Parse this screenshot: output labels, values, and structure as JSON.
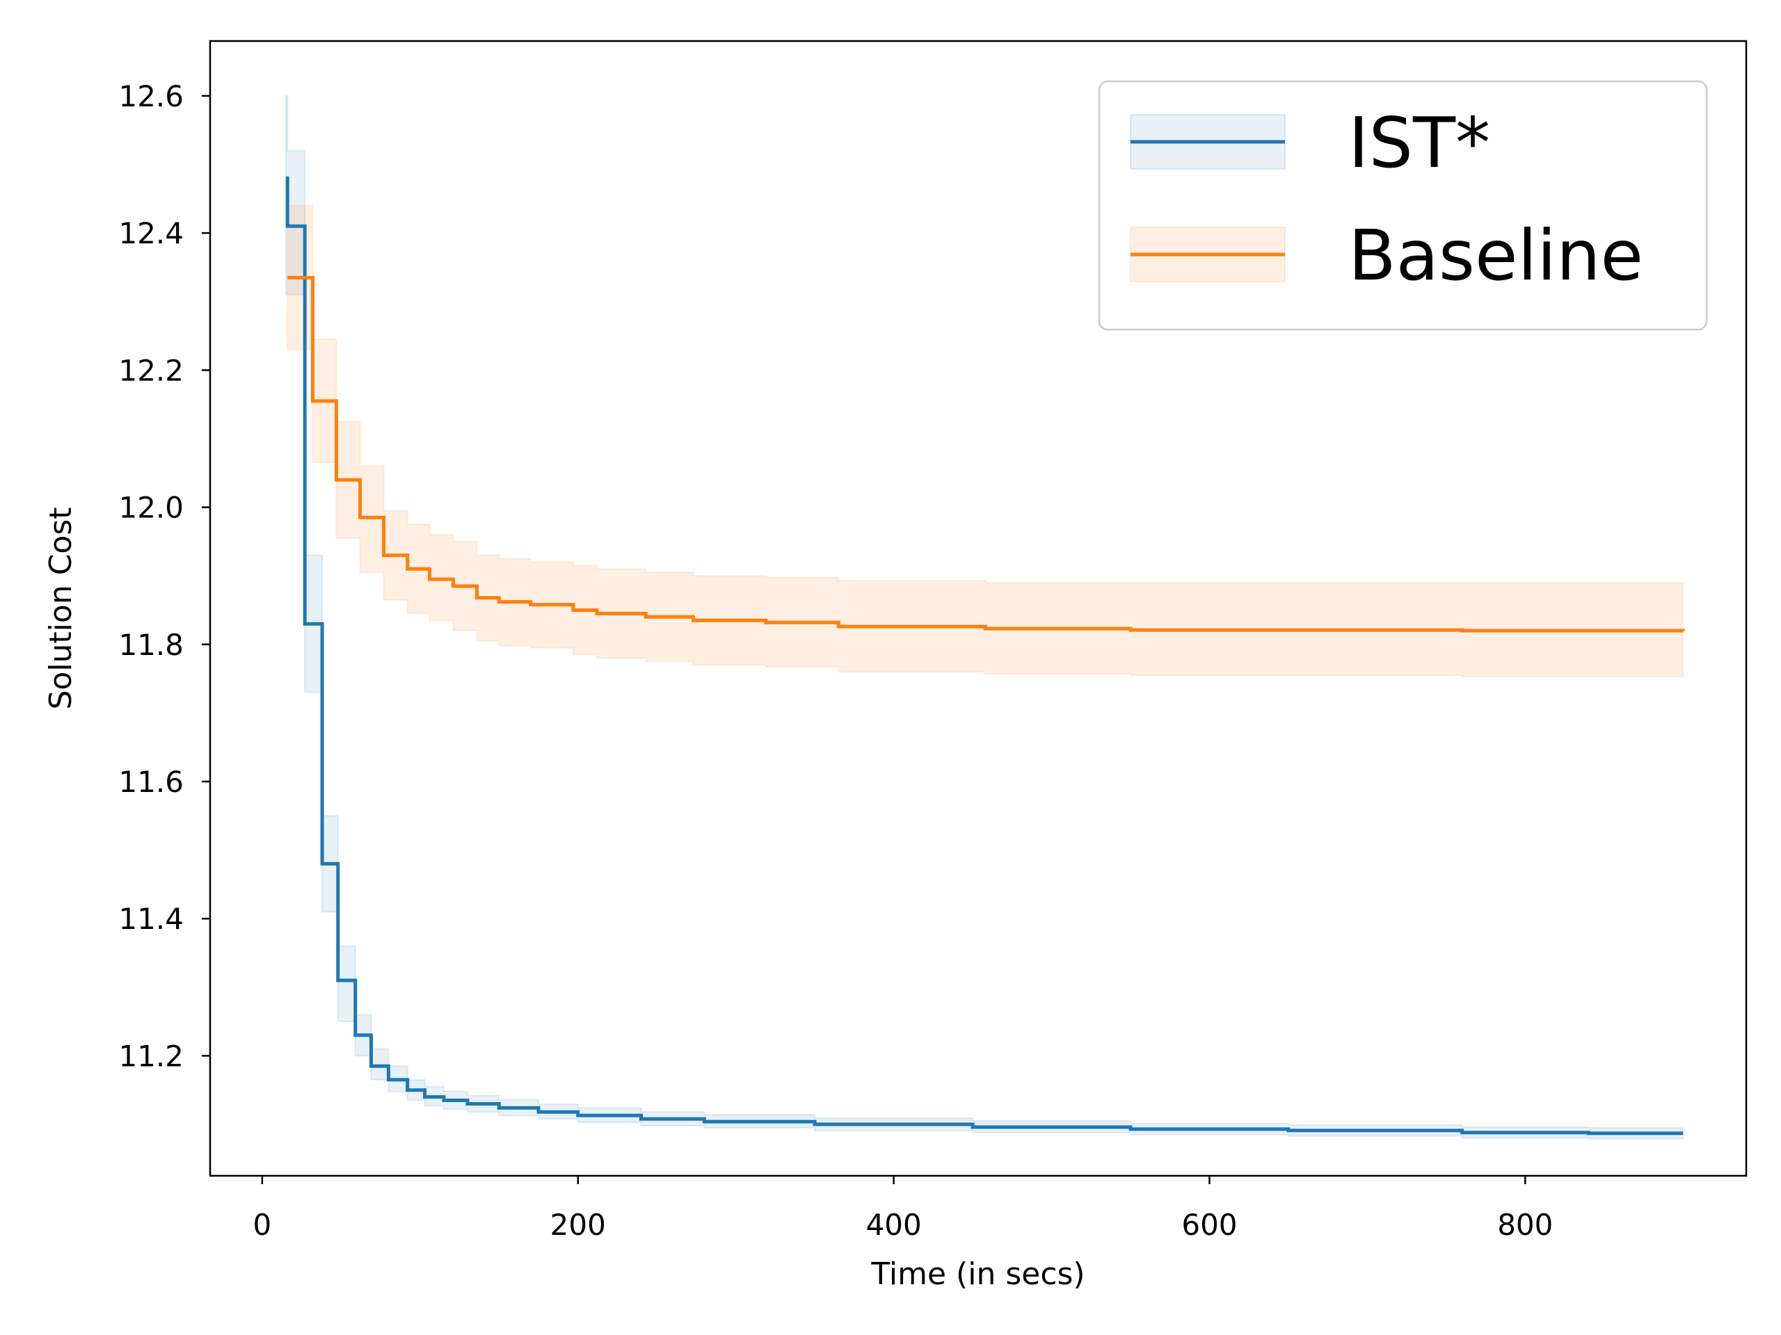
{
  "chart_data": {
    "type": "line",
    "title": "",
    "xlabel": "Time (in secs)",
    "ylabel": "Solution Cost",
    "xlim": [
      -33,
      940
    ],
    "ylim": [
      11.025,
      12.68
    ],
    "xticks": [
      0,
      200,
      400,
      600,
      800
    ],
    "xtick_labels": [
      "0",
      "200",
      "400",
      "600",
      "800"
    ],
    "yticks": [
      11.2,
      11.4,
      11.6,
      11.8,
      12.0,
      12.2,
      12.4,
      12.6
    ],
    "ytick_labels": [
      "11.2",
      "11.4",
      "11.6",
      "11.8",
      "12.0",
      "12.2",
      "12.4",
      "12.6"
    ],
    "grid": false,
    "legend_position": "top-right",
    "series": [
      {
        "name": "IST*",
        "color": "#1f77b4",
        "band_opacity": 0.1,
        "step": true,
        "points": [
          {
            "x": 15,
            "y": 12.48,
            "lo": 12.31,
            "hi": 12.6
          },
          {
            "x": 16,
            "y": 12.41,
            "lo": 12.31,
            "hi": 12.52
          },
          {
            "x": 27,
            "y": 11.83,
            "lo": 11.73,
            "hi": 11.93
          },
          {
            "x": 38,
            "y": 11.48,
            "lo": 11.41,
            "hi": 11.55
          },
          {
            "x": 48,
            "y": 11.31,
            "lo": 11.25,
            "hi": 11.36
          },
          {
            "x": 59,
            "y": 11.23,
            "lo": 11.2,
            "hi": 11.26
          },
          {
            "x": 69,
            "y": 11.185,
            "lo": 11.165,
            "hi": 11.21
          },
          {
            "x": 80,
            "y": 11.165,
            "lo": 11.148,
            "hi": 11.185
          },
          {
            "x": 92,
            "y": 11.15,
            "lo": 11.135,
            "hi": 11.165
          },
          {
            "x": 103,
            "y": 11.14,
            "lo": 11.127,
            "hi": 11.155
          },
          {
            "x": 115,
            "y": 11.135,
            "lo": 11.122,
            "hi": 11.148
          },
          {
            "x": 130,
            "y": 11.13,
            "lo": 11.118,
            "hi": 11.142
          },
          {
            "x": 150,
            "y": 11.124,
            "lo": 11.113,
            "hi": 11.136
          },
          {
            "x": 175,
            "y": 11.118,
            "lo": 11.108,
            "hi": 11.129
          },
          {
            "x": 200,
            "y": 11.113,
            "lo": 11.103,
            "hi": 11.124
          },
          {
            "x": 240,
            "y": 11.108,
            "lo": 11.098,
            "hi": 11.118
          },
          {
            "x": 280,
            "y": 11.104,
            "lo": 11.095,
            "hi": 11.114
          },
          {
            "x": 350,
            "y": 11.1,
            "lo": 11.091,
            "hi": 11.109
          },
          {
            "x": 450,
            "y": 11.096,
            "lo": 11.088,
            "hi": 11.105
          },
          {
            "x": 550,
            "y": 11.093,
            "lo": 11.085,
            "hi": 11.101
          },
          {
            "x": 650,
            "y": 11.091,
            "lo": 11.083,
            "hi": 11.099
          },
          {
            "x": 760,
            "y": 11.088,
            "lo": 11.08,
            "hi": 11.096
          },
          {
            "x": 840,
            "y": 11.087,
            "lo": 11.079,
            "hi": 11.095
          },
          {
            "x": 900,
            "y": 11.087,
            "lo": 11.079,
            "hi": 11.095
          }
        ]
      },
      {
        "name": "Baseline",
        "color": "#ff7f0e",
        "band_opacity": 0.12,
        "step": true,
        "points": [
          {
            "x": 16,
            "y": 12.335,
            "lo": 12.23,
            "hi": 12.44
          },
          {
            "x": 32,
            "y": 12.155,
            "lo": 12.065,
            "hi": 12.245
          },
          {
            "x": 47,
            "y": 12.04,
            "lo": 11.955,
            "hi": 12.125
          },
          {
            "x": 62,
            "y": 11.985,
            "lo": 11.905,
            "hi": 12.06
          },
          {
            "x": 77,
            "y": 11.93,
            "lo": 11.865,
            "hi": 11.995
          },
          {
            "x": 92,
            "y": 11.91,
            "lo": 11.845,
            "hi": 11.975
          },
          {
            "x": 106,
            "y": 11.895,
            "lo": 11.835,
            "hi": 11.96
          },
          {
            "x": 121,
            "y": 11.885,
            "lo": 11.82,
            "hi": 11.95
          },
          {
            "x": 136,
            "y": 11.868,
            "lo": 11.805,
            "hi": 11.93
          },
          {
            "x": 150,
            "y": 11.862,
            "lo": 11.798,
            "hi": 11.925
          },
          {
            "x": 170,
            "y": 11.858,
            "lo": 11.795,
            "hi": 11.92
          },
          {
            "x": 197,
            "y": 11.85,
            "lo": 11.785,
            "hi": 11.915
          },
          {
            "x": 212,
            "y": 11.845,
            "lo": 11.78,
            "hi": 11.91
          },
          {
            "x": 243,
            "y": 11.84,
            "lo": 11.775,
            "hi": 11.905
          },
          {
            "x": 273,
            "y": 11.835,
            "lo": 11.77,
            "hi": 11.9
          },
          {
            "x": 319,
            "y": 11.832,
            "lo": 11.767,
            "hi": 11.898
          },
          {
            "x": 365,
            "y": 11.826,
            "lo": 11.76,
            "hi": 11.893
          },
          {
            "x": 458,
            "y": 11.823,
            "lo": 11.757,
            "hi": 11.89
          },
          {
            "x": 550,
            "y": 11.821,
            "lo": 11.755,
            "hi": 11.89
          },
          {
            "x": 760,
            "y": 11.82,
            "lo": 11.753,
            "hi": 11.89
          },
          {
            "x": 900,
            "y": 11.819,
            "lo": 11.752,
            "hi": 11.89
          }
        ]
      }
    ]
  }
}
